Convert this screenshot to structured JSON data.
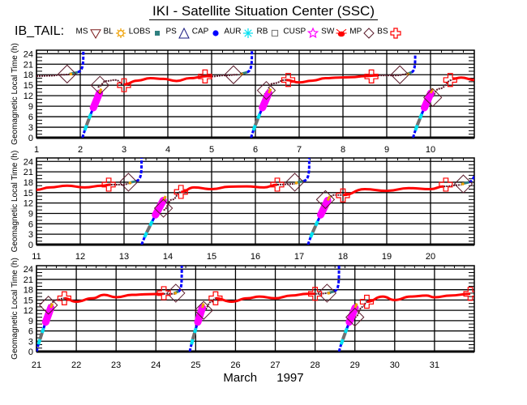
{
  "title": "IKI - Satellite Situation Center (SSC)",
  "satellite_label": "IB_TAIL:",
  "legend": [
    {
      "label": "MS",
      "symbol": "triangle-down",
      "color": "#7a1a1a"
    },
    {
      "label": "BL",
      "symbol": "sun",
      "color": "#f0a000"
    },
    {
      "label": "LOBS",
      "symbol": "square-filled",
      "color": "#2f8080"
    },
    {
      "label": "PS",
      "symbol": "triangle-up",
      "color": "#1a1a80"
    },
    {
      "label": "CAP",
      "symbol": "circle-filled",
      "color": "#0000ff"
    },
    {
      "label": "AUR",
      "symbol": "asterisk",
      "color": "#00e0f0"
    },
    {
      "label": "RB",
      "symbol": "square-open",
      "color": "#707070"
    },
    {
      "label": "CUSP",
      "symbol": "star",
      "color": "#ff00ff"
    },
    {
      "label": "SW",
      "symbol": "spider",
      "color": "#ff0000"
    },
    {
      "label": "MP",
      "symbol": "diamond",
      "color": "#5a1a2a"
    },
    {
      "label": "BS",
      "symbol": "cross",
      "color": "#ff0000"
    }
  ],
  "x_title_month": "March",
  "x_title_year": "1997",
  "colors": {
    "sw": "#ff0000",
    "ms": "#5a1a2a",
    "cap": "#0000ff",
    "lobs": "#2f8080",
    "aur": "#00e0f0",
    "rb": "#707070",
    "cusp": "#ff00ff",
    "bl": "#f0a000"
  },
  "chart_data": [
    {
      "type": "scatter",
      "panel": 1,
      "ylabel": "Geomagnetic Local Time (h)",
      "xlabel": "",
      "xlim": [
        1,
        11
      ],
      "ylim": [
        0,
        25
      ],
      "yticks": [
        0,
        3,
        6,
        9,
        12,
        15,
        18,
        21,
        24
      ],
      "xticks": [
        1,
        2,
        3,
        4,
        5,
        6,
        7,
        8,
        9,
        10
      ],
      "grid": true,
      "sw_path": [
        [
          3.0,
          15.2
        ],
        [
          3.3,
          16.3
        ],
        [
          3.6,
          17.0
        ],
        [
          3.9,
          16.8
        ],
        [
          4.2,
          16.2
        ],
        [
          4.5,
          17.0
        ],
        [
          4.9,
          17.6
        ],
        [
          5.0,
          17.5
        ]
      ],
      "sw_path2": [
        [
          6.7,
          16.5
        ],
        [
          7.0,
          15.8
        ],
        [
          7.3,
          16.3
        ],
        [
          7.6,
          17.0
        ],
        [
          7.9,
          17.2
        ],
        [
          8.2,
          17.3
        ],
        [
          8.5,
          17.6
        ],
        [
          8.8,
          17.8
        ]
      ],
      "sw_path3": [
        [
          10.5,
          16.8
        ],
        [
          10.7,
          17.2
        ],
        [
          11.0,
          16.5
        ]
      ],
      "ms_paths": [
        [
          [
            1.0,
            17.6
          ],
          [
            1.3,
            17.7
          ],
          [
            1.6,
            18.0
          ],
          [
            1.9,
            18.2
          ]
        ],
        [
          [
            2.4,
            14.5
          ],
          [
            2.6,
            16.2
          ],
          [
            2.8,
            16.5
          ],
          [
            3.0,
            15.2
          ]
        ],
        [
          [
            5.0,
            17.5
          ],
          [
            5.3,
            17.8
          ],
          [
            5.6,
            18.0
          ]
        ],
        [
          [
            6.2,
            12.5
          ],
          [
            6.4,
            15.5
          ],
          [
            6.7,
            16.5
          ]
        ],
        [
          [
            8.8,
            17.8
          ],
          [
            9.2,
            17.8
          ],
          [
            9.5,
            18.2
          ]
        ],
        [
          [
            10.0,
            11.5
          ],
          [
            10.2,
            14.0
          ],
          [
            10.5,
            16.5
          ]
        ]
      ],
      "traversals": [
        {
          "x0": 2.05,
          "x1": 2.48,
          "cap_top_x": 2.05
        },
        {
          "x0": 5.9,
          "x1": 6.35,
          "cap_top_x": 5.93
        },
        {
          "x0": 9.6,
          "x1": 10.05,
          "cap_top_x": 9.65
        }
      ],
      "evening_caps": [
        [
          1.75,
          18.2,
          2.07,
          25
        ],
        [
          5.65,
          18.2,
          5.92,
          25
        ],
        [
          9.45,
          18.2,
          9.65,
          24
        ]
      ],
      "mp_crossings": [
        [
          1.7,
          18.2
        ],
        [
          2.45,
          15.0
        ],
        [
          5.5,
          18.0
        ],
        [
          6.25,
          13.5
        ],
        [
          9.3,
          18.0
        ],
        [
          10.05,
          11.5
        ]
      ],
      "bs_crossings": [
        [
          3.0,
          15.0
        ],
        [
          4.85,
          17.5
        ],
        [
          6.75,
          16.5
        ],
        [
          8.65,
          17.5
        ],
        [
          10.45,
          16.5
        ]
      ]
    },
    {
      "type": "scatter",
      "panel": 2,
      "ylabel": "Geomagnetic Local Time (h)",
      "xlim": [
        11,
        21
      ],
      "ylim": [
        0,
        25
      ],
      "yticks": [
        0,
        3,
        6,
        9,
        12,
        15,
        18,
        21,
        24
      ],
      "xticks": [
        11,
        12,
        13,
        14,
        15,
        16,
        17,
        18,
        19,
        20
      ],
      "grid": true,
      "sw_path": [
        [
          11.0,
          15.8
        ],
        [
          11.3,
          16.5
        ],
        [
          11.7,
          17.0
        ],
        [
          12.1,
          16.5
        ],
        [
          12.5,
          17.0
        ],
        [
          12.7,
          17.3
        ]
      ],
      "sw_path2": [
        [
          14.3,
          15.2
        ],
        [
          14.6,
          16.5
        ],
        [
          15.0,
          16.0
        ],
        [
          15.4,
          16.7
        ],
        [
          15.8,
          16.8
        ],
        [
          16.2,
          16.5
        ],
        [
          16.5,
          17.3
        ]
      ],
      "sw_path3": [
        [
          18.0,
          14.3
        ],
        [
          18.5,
          16.0
        ],
        [
          19.0,
          15.5
        ],
        [
          19.5,
          16.3
        ],
        [
          20.0,
          16.0
        ],
        [
          20.3,
          16.8
        ]
      ],
      "ms_paths": [
        [
          [
            12.7,
            17.3
          ],
          [
            13.0,
            17.3
          ],
          [
            13.1,
            17.6
          ]
        ],
        [
          [
            13.9,
            10.0
          ],
          [
            14.1,
            13.0
          ],
          [
            14.3,
            15.2
          ]
        ],
        [
          [
            16.5,
            17.3
          ],
          [
            16.9,
            17.5
          ]
        ],
        [
          [
            17.6,
            12.5
          ],
          [
            17.8,
            14.3
          ],
          [
            18.0,
            14.3
          ]
        ],
        [
          [
            20.3,
            16.8
          ],
          [
            20.7,
            17.2
          ]
        ]
      ],
      "traversals": [
        {
          "x0": 13.4,
          "x1": 13.95,
          "cap_top_x": 13.42
        },
        {
          "x0": 17.2,
          "x1": 17.7,
          "cap_top_x": 17.23
        }
      ],
      "evening_caps": [
        [
          13.1,
          17.8,
          13.4,
          25
        ],
        [
          16.9,
          17.8,
          17.23,
          25
        ],
        [
          20.7,
          17.5,
          21.0,
          20
        ]
      ],
      "mp_crossings": [
        [
          13.1,
          18.0
        ],
        [
          13.9,
          10.5
        ],
        [
          16.9,
          18.0
        ],
        [
          17.6,
          13.0
        ],
        [
          20.75,
          17.5
        ]
      ],
      "bs_crossings": [
        [
          12.65,
          17.3
        ],
        [
          14.3,
          15.2
        ],
        [
          16.5,
          17.3
        ],
        [
          18.0,
          14.2
        ],
        [
          20.35,
          17.3
        ]
      ]
    },
    {
      "type": "scatter",
      "panel": 3,
      "ylabel": "Geomagnetic Local Time (h)",
      "xlim": [
        21,
        32
      ],
      "ylim": [
        0,
        25
      ],
      "yticks": [
        0,
        3,
        6,
        9,
        12,
        15,
        18,
        21,
        24
      ],
      "xticks": [
        21,
        22,
        23,
        24,
        25,
        26,
        27,
        28,
        29,
        30,
        31
      ],
      "grid": true,
      "sw_path": [
        [
          21.7,
          15.5
        ],
        [
          22.0,
          14.5
        ],
        [
          22.4,
          15.5
        ],
        [
          22.7,
          16.5
        ],
        [
          23.0,
          15.8
        ],
        [
          23.4,
          16.5
        ],
        [
          23.8,
          16.7
        ],
        [
          24.2,
          16.8
        ]
      ],
      "sw_path2": [
        [
          25.5,
          15.5
        ],
        [
          25.9,
          14.5
        ],
        [
          26.3,
          15.5
        ],
        [
          26.6,
          16.0
        ],
        [
          27.0,
          15.5
        ],
        [
          27.4,
          16.3
        ],
        [
          27.8,
          16.8
        ],
        [
          28.0,
          16.8
        ]
      ],
      "sw_path3": [
        [
          29.3,
          14.5
        ],
        [
          29.7,
          16.0
        ],
        [
          30.0,
          15.0
        ],
        [
          30.4,
          16.0
        ],
        [
          30.8,
          16.3
        ],
        [
          31.0,
          15.8
        ],
        [
          31.4,
          16.3
        ],
        [
          31.9,
          16.8
        ]
      ],
      "ms_paths": [
        [
          [
            21.3,
            13.5
          ],
          [
            21.5,
            15.0
          ],
          [
            21.7,
            15.5
          ]
        ],
        [
          [
            24.2,
            16.8
          ],
          [
            24.5,
            16.8
          ]
        ],
        [
          [
            25.2,
            12.0
          ],
          [
            25.4,
            14.5
          ],
          [
            25.5,
            15.5
          ]
        ],
        [
          [
            28.0,
            16.8
          ],
          [
            28.4,
            17.0
          ]
        ],
        [
          [
            29.0,
            10.0
          ],
          [
            29.2,
            13.0
          ],
          [
            29.3,
            14.5
          ]
        ]
      ],
      "traversals": [
        {
          "x0": 21.0,
          "x1": 21.4,
          "cap_top_x": 21.0
        },
        {
          "x0": 24.85,
          "x1": 25.2,
          "cap_top_x": 24.85
        },
        {
          "x0": 28.6,
          "x1": 29.05,
          "cap_top_x": 28.62
        }
      ],
      "evening_caps": [
        [
          24.45,
          17.0,
          24.65,
          25
        ],
        [
          28.3,
          17.0,
          28.6,
          25
        ]
      ],
      "mp_crossings": [
        [
          21.3,
          13.5
        ],
        [
          24.5,
          17.0
        ],
        [
          25.2,
          12.0
        ],
        [
          28.3,
          17.0
        ],
        [
          29.0,
          10.0
        ]
      ],
      "bs_crossings": [
        [
          21.7,
          15.5
        ],
        [
          24.2,
          17.0
        ],
        [
          25.5,
          15.5
        ],
        [
          28.0,
          16.8
        ],
        [
          29.3,
          14.5
        ],
        [
          31.9,
          16.8
        ]
      ]
    }
  ]
}
